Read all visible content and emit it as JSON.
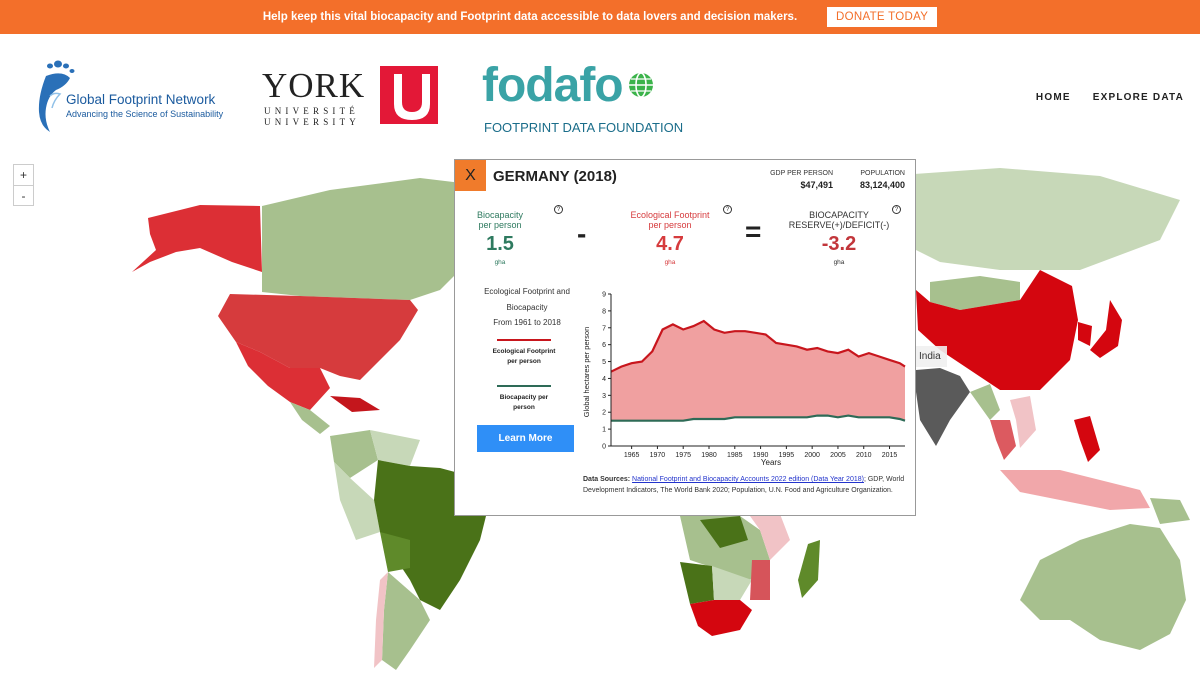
{
  "banner": {
    "message": "Help keep this vital biocapacity and Footprint data accessible to data lovers and decision makers.",
    "donate_label": "DONATE TODAY"
  },
  "header": {
    "gfn_name": "Global Footprint Network",
    "gfn_tagline": "Advancing the Science of Sustainability",
    "york_word": "YORK",
    "york_u": "U",
    "york_univ1": "UNIVERSITÉ",
    "york_univ2": "UNIVERSITY",
    "fodafo_word": "fodafo",
    "fodafo_sub": "FOOTPRINT DATA FOUNDATION",
    "nav": [
      "HOME",
      "EXPLORE DATA"
    ]
  },
  "map": {
    "zoom_in": "+",
    "zoom_out": "-",
    "tooltip": "India"
  },
  "panel": {
    "close": "X",
    "country": "GERMANY (2018)",
    "gdp_label": "GDP PER PERSON",
    "gdp_value": "$47,491",
    "pop_label": "POPULATION",
    "pop_value": "83,124,400",
    "biocap_label1": "Biocapacity",
    "biocap_label2": "per person",
    "biocap_value": "1.5",
    "biocap_unit": "gha",
    "ef_label1": "Ecological Footprint",
    "ef_label2": "per person",
    "ef_value": "4.7",
    "ef_unit": "gha",
    "reserve_label1": "BIOCAPACITY",
    "reserve_label2": "RESERVE(+)/DEFICIT(-)",
    "reserve_value": "-3.2",
    "reserve_unit": "gha",
    "minus": "-",
    "equals": "=",
    "help": "?",
    "efbio_title1": "Ecological Footprint and",
    "efbio_title2": "Biocapacity",
    "efbio_title3": "From 1961 to 2018",
    "legend_ef": "Ecological Footprint per person",
    "legend_bio": "Biocapacity per person",
    "learn_more": "Learn More",
    "sources_label": "Data Sources:",
    "sources_link": "National Footprint and Biocapacity Accounts 2022 edition (Data Year 2018)",
    "sources_rest": "; GDP, World Development Indicators, The World Bank 2020; Population, U.N. Food and Agriculture Organization."
  },
  "colors": {
    "ef_line": "#c8161d",
    "ef_fill": "#f0a0a0",
    "bio_line": "#2e6b57",
    "bio_fill": "#bcd6c8",
    "banner": "#f36f2a"
  },
  "chart_data": {
    "type": "area",
    "xlabel": "Years",
    "ylabel": "Global hectares per person",
    "ylim": [
      0,
      9
    ],
    "yticks": [
      0,
      1,
      2,
      3,
      4,
      5,
      6,
      7,
      8,
      9
    ],
    "xticks": [
      1965,
      1970,
      1975,
      1980,
      1985,
      1990,
      1995,
      2000,
      2005,
      2010,
      2015
    ],
    "x": [
      1961,
      1963,
      1965,
      1967,
      1969,
      1971,
      1973,
      1975,
      1977,
      1979,
      1981,
      1983,
      1985,
      1987,
      1989,
      1991,
      1993,
      1995,
      1997,
      1999,
      2001,
      2003,
      2005,
      2007,
      2009,
      2011,
      2013,
      2015,
      2017,
      2018
    ],
    "series": [
      {
        "name": "Ecological Footprint per person",
        "values": [
          4.4,
          4.7,
          4.9,
          5.0,
          5.6,
          6.9,
          7.2,
          6.9,
          7.1,
          7.4,
          6.9,
          6.7,
          6.8,
          6.8,
          6.7,
          6.6,
          6.1,
          6.0,
          5.9,
          5.7,
          5.8,
          5.6,
          5.5,
          5.7,
          5.3,
          5.5,
          5.3,
          5.1,
          4.9,
          4.7
        ]
      },
      {
        "name": "Biocapacity per person",
        "values": [
          1.5,
          1.5,
          1.5,
          1.5,
          1.5,
          1.5,
          1.5,
          1.5,
          1.6,
          1.6,
          1.6,
          1.6,
          1.7,
          1.7,
          1.7,
          1.7,
          1.7,
          1.7,
          1.7,
          1.7,
          1.8,
          1.8,
          1.7,
          1.8,
          1.7,
          1.7,
          1.7,
          1.7,
          1.6,
          1.5
        ]
      }
    ]
  }
}
